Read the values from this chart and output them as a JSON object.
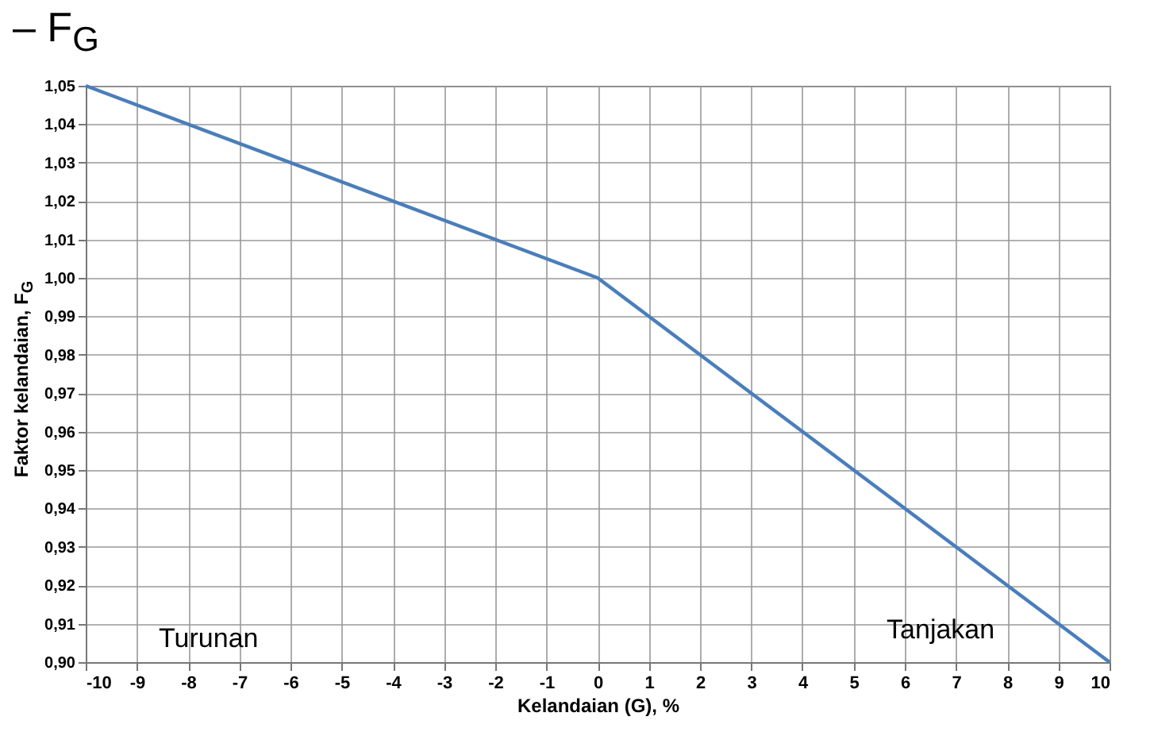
{
  "chart_data": {
    "type": "line",
    "title": "– F$_{G}$",
    "xlabel": "Kelandaian (G), %",
    "ylabel": "Faktor kelandaian, F$_{G}$",
    "x": [
      -10,
      0,
      10
    ],
    "series": [
      {
        "color": "#4a7ebb",
        "values": [
          1.05,
          1.0,
          0.9
        ]
      }
    ],
    "xlim": [
      -10,
      10
    ],
    "xticks": [
      -10,
      -9,
      -8,
      -7,
      -6,
      -5,
      -4,
      -3,
      -2,
      -1,
      0,
      1,
      2,
      3,
      4,
      5,
      6,
      7,
      8,
      9,
      10
    ],
    "ylim": [
      0.9,
      1.05
    ],
    "yticks": [
      {
        "value": 0.9,
        "label": "0,90"
      },
      {
        "value": 0.91,
        "label": "0,91"
      },
      {
        "value": 0.92,
        "label": "0,92"
      },
      {
        "value": 0.93,
        "label": "0,93"
      },
      {
        "value": 0.94,
        "label": "0,94"
      },
      {
        "value": 0.95,
        "label": "0,95"
      },
      {
        "value": 0.96,
        "label": "0,96"
      },
      {
        "value": 0.97,
        "label": "0,97"
      },
      {
        "value": 0.98,
        "label": "0,98"
      },
      {
        "value": 0.99,
        "label": "0,99"
      },
      {
        "value": 1.0,
        "label": "1,00"
      },
      {
        "value": 1.01,
        "label": "1,01"
      },
      {
        "value": 1.02,
        "label": "1,02"
      },
      {
        "value": 1.03,
        "label": "1,03"
      },
      {
        "value": 1.04,
        "label": "1,04"
      },
      {
        "value": 1.05,
        "label": "1,05"
      }
    ],
    "grid": true,
    "marker": "none",
    "line_style": "solid",
    "annotations": [
      "Turunan",
      "Tanjakan"
    ]
  }
}
